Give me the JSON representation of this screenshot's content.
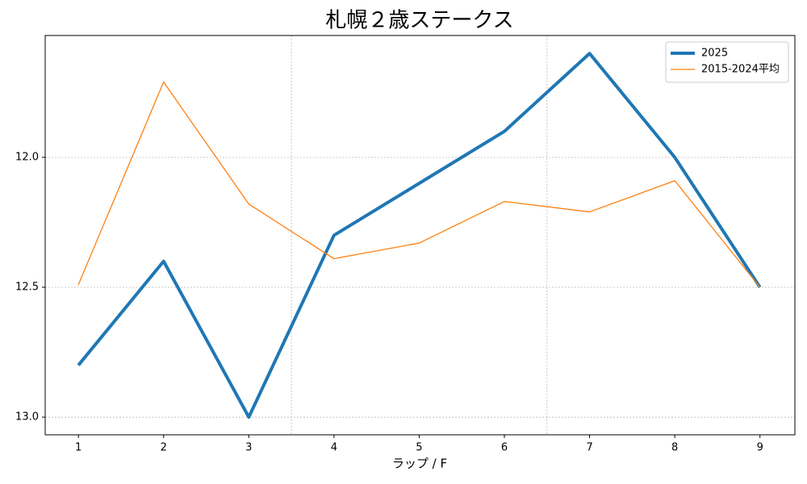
{
  "chart_data": {
    "type": "line",
    "title": "札幌２歳ステークス",
    "xlabel": "ラップ / F",
    "x": [
      1,
      2,
      3,
      4,
      5,
      6,
      7,
      8,
      9
    ],
    "series": [
      {
        "name": "2025",
        "color": "#1f77b4",
        "width": 4,
        "values": [
          12.8,
          12.4,
          13.0,
          12.3,
          12.1,
          11.9,
          11.6,
          12.0,
          12.5
        ]
      },
      {
        "name": "2015-2024平均",
        "color": "#ff7f0e",
        "width": 1.3,
        "values": [
          12.49,
          11.71,
          12.18,
          12.39,
          12.33,
          12.17,
          12.21,
          12.09,
          12.5
        ]
      }
    ],
    "xlim": [
      0.61,
      9.41
    ],
    "xticks": [
      1,
      2,
      3,
      4,
      5,
      6,
      7,
      8,
      9
    ],
    "ylim": [
      13.068,
      11.531
    ],
    "yticks": [
      {
        "value": 12.0,
        "label": "12.0"
      },
      {
        "value": 12.5,
        "label": "12.5"
      },
      {
        "value": 13.0,
        "label": "13.0"
      }
    ],
    "vlines": [
      3.5,
      6.5
    ],
    "grid": true,
    "legend": "upper right"
  }
}
